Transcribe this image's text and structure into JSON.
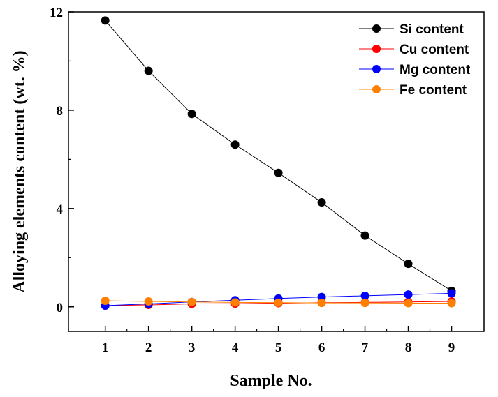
{
  "chart_data": {
    "type": "line",
    "title": "",
    "xlabel": "Sample No.",
    "ylabel": "Alloying elements content (wt. %)",
    "x": [
      1,
      2,
      3,
      4,
      5,
      6,
      7,
      8,
      9
    ],
    "x_tick_labels": [
      "1",
      "2",
      "3",
      "4",
      "5",
      "6",
      "7",
      "8",
      "9"
    ],
    "y_tick_labels": [
      "0",
      "4",
      "8",
      "12"
    ],
    "y_ticks": [
      0,
      4,
      8,
      12
    ],
    "xlim": [
      0.15,
      9.75
    ],
    "ylim": [
      -1,
      12
    ],
    "grid": false,
    "legend_position": "top-right",
    "series": [
      {
        "name": "Si content",
        "color": "#000000",
        "values": [
          11.65,
          9.6,
          7.85,
          6.6,
          5.45,
          4.25,
          2.9,
          1.75,
          0.65
        ]
      },
      {
        "name": "Cu content",
        "color": "#ff0000",
        "values": [
          0.05,
          0.08,
          0.12,
          0.13,
          0.15,
          0.17,
          0.18,
          0.2,
          0.22
        ]
      },
      {
        "name": "Mg content",
        "color": "#0000ff",
        "values": [
          0.05,
          0.12,
          0.2,
          0.27,
          0.34,
          0.4,
          0.45,
          0.5,
          0.55
        ]
      },
      {
        "name": "Fe content",
        "color": "#ff8000",
        "values": [
          0.25,
          0.22,
          0.2,
          0.18,
          0.17,
          0.16,
          0.16,
          0.15,
          0.15
        ]
      }
    ]
  }
}
